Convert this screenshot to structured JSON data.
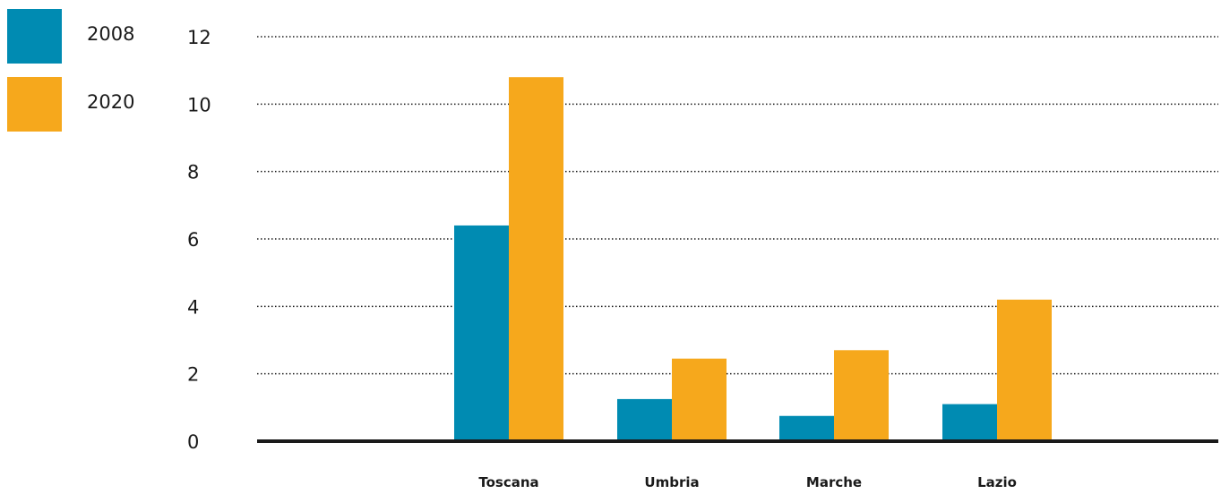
{
  "chart_data": {
    "type": "bar",
    "title": "",
    "xlabel": "",
    "ylabel": "",
    "categories": [
      "Toscana",
      "Umbria",
      "Marche",
      "Lazio"
    ],
    "series": [
      {
        "name": "2008",
        "values": [
          6.4,
          1.25,
          0.75,
          1.1
        ],
        "color": "#008bb2"
      },
      {
        "name": "2020",
        "values": [
          10.8,
          2.45,
          2.7,
          4.2
        ],
        "color": "#f6a81c"
      }
    ],
    "ylim": [
      0,
      12
    ],
    "yticks": [
      "0",
      "2",
      "4",
      "6",
      "8",
      "10",
      "12"
    ],
    "grid": true,
    "legend_position": "top-left"
  }
}
